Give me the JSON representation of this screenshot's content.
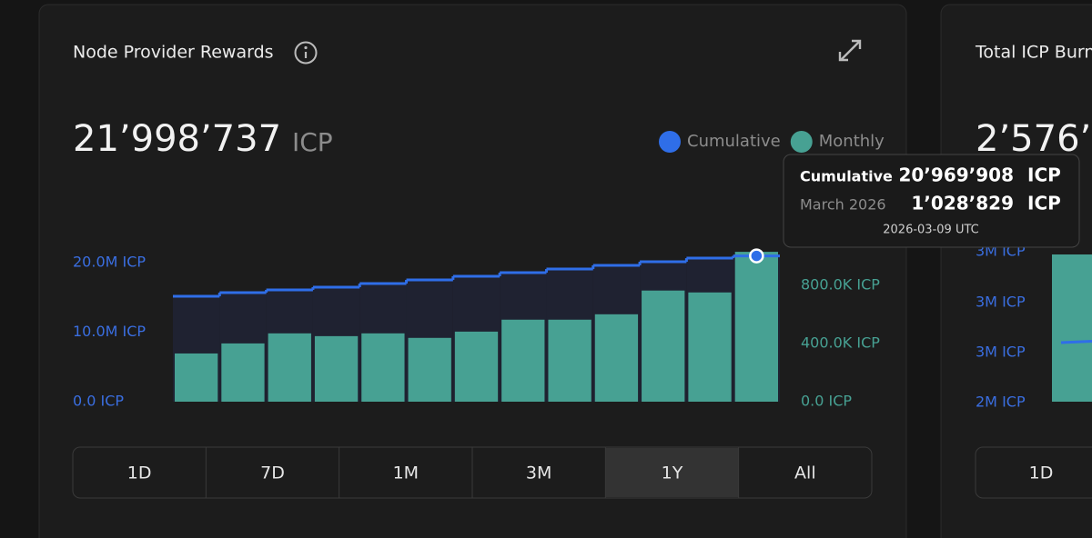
{
  "card": {
    "range_buttons": [
      "1D",
      "7D",
      "1M",
      "3M",
      "1Y",
      "All"
    ],
    "selected": "1Y"
  },
  "chart_data": {
    "type": "bar",
    "title": "Node Provider Rewards",
    "total": "21’998’737",
    "total_unit": "ICP",
    "categories": [
      null,
      null,
      null,
      null,
      null,
      null,
      null,
      null,
      null,
      null,
      null,
      null,
      null
    ],
    "series": [
      {
        "name": "Cumulative",
        "type": "line",
        "color": "#2f6ee8",
        "axis": "y",
        "values": [
          15160000,
          15690000,
          16080000,
          16470000,
          16990000,
          17520000,
          18040000,
          18560000,
          19080000,
          19610000,
          20130000,
          20650000,
          20969908
        ]
      },
      {
        "name": "Monthly",
        "type": "bar",
        "color": "#47a193",
        "axis": "y2",
        "values": [
          331000,
          400000,
          469000,
          450000,
          469000,
          438000,
          481000,
          563000,
          563000,
          600000,
          763000,
          750000,
          1028829
        ]
      }
    ],
    "ylim": [
      0,
      22000000
    ],
    "yticks": [
      {
        "value": 0,
        "label": "0.0 ICP"
      },
      {
        "value": 10000000,
        "label": "10.0M ICP"
      },
      {
        "value": 20000000,
        "label": "20.0M ICP"
      }
    ],
    "y2lim": [
      0,
      1050000
    ],
    "y2ticks": [
      {
        "value": 0,
        "label": "0.0 ICP"
      },
      {
        "value": 400000,
        "label": "400.0K ICP"
      },
      {
        "value": 800000,
        "label": "800.0K ICP"
      }
    ],
    "legend": "top-right",
    "tooltip": {
      "series_label": "Cumulative",
      "series_value": "20’969’908",
      "series_unit": "ICP",
      "period_label": "March 2026",
      "period_value": "1’028’829",
      "period_unit": "ICP",
      "date": "2026-03-09 UTC"
    }
  },
  "second_card": {
    "title": "Total ICP Burn",
    "total": "2’576’",
    "axis_labels": [
      "3M ICP",
      "3M ICP",
      "3M ICP",
      "2M ICP"
    ],
    "range_buttons": [
      "1D"
    ]
  }
}
